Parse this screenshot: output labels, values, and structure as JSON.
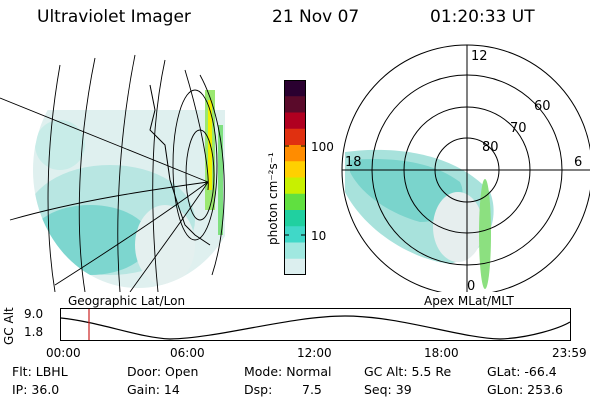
{
  "header": {
    "instrument": "Ultraviolet Imager",
    "date": "21 Nov 07",
    "time": "01:20:33 UT"
  },
  "geo_panel": {
    "label": "Geographic Lat/Lon"
  },
  "colorbar": {
    "unit_label": "photon cm⁻²s⁻¹",
    "ticks": [
      "100",
      "10"
    ],
    "colors": [
      "#2a0030",
      "#5a0a2a",
      "#b00020",
      "#e03010",
      "#ff8c00",
      "#ffd000",
      "#c8f000",
      "#60e040",
      "#20d0a0",
      "#40d8c8",
      "#a0e8e0",
      "#dcefef"
    ]
  },
  "polar_panel": {
    "label": "Apex MLat/MLT",
    "mlt_labels": [
      "12",
      "18",
      "6",
      "0"
    ],
    "lat_labels": [
      "60",
      "70",
      "80"
    ]
  },
  "altitude_plot": {
    "ylabel": "GC Alt",
    "yticks": [
      "9.0",
      "1.8"
    ],
    "xticks": [
      "00:00",
      "06:00",
      "12:00",
      "18:00",
      "23:59"
    ],
    "current_time_marker": "01:20"
  },
  "info": {
    "flt": "Flt: LBHL",
    "ip": "IP: 36.0",
    "door": "Door: Open",
    "gain": "Gain: 14",
    "mode": "Mode: Normal",
    "dsp_label": "Dsp:",
    "dsp_value": "7.5",
    "gc_alt": "GC Alt: 5.5 Re",
    "seq": "Seq: 39",
    "glat": "GLat: -66.4",
    "glon": "GLon: 253.6"
  }
}
